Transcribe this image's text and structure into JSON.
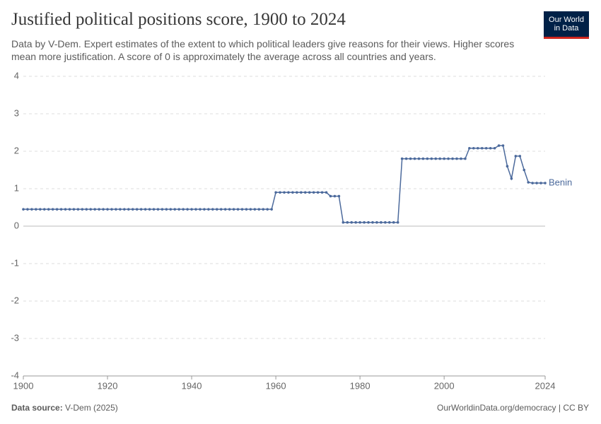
{
  "chart_data": {
    "type": "line",
    "title": "Justified political positions score, 1900 to 2024",
    "subtitle": "Data by V-Dem. Expert estimates of the extent to which political leaders give reasons for their views. Higher scores mean more justification. A score of 0 is approximately the average across all countries and years.",
    "x": [
      1900,
      1901,
      1902,
      1903,
      1904,
      1905,
      1906,
      1907,
      1908,
      1909,
      1910,
      1911,
      1912,
      1913,
      1914,
      1915,
      1916,
      1917,
      1918,
      1919,
      1920,
      1921,
      1922,
      1923,
      1924,
      1925,
      1926,
      1927,
      1928,
      1929,
      1930,
      1931,
      1932,
      1933,
      1934,
      1935,
      1936,
      1937,
      1938,
      1939,
      1940,
      1941,
      1942,
      1943,
      1944,
      1945,
      1946,
      1947,
      1948,
      1949,
      1950,
      1951,
      1952,
      1953,
      1954,
      1955,
      1956,
      1957,
      1958,
      1959,
      1960,
      1961,
      1962,
      1963,
      1964,
      1965,
      1966,
      1967,
      1968,
      1969,
      1970,
      1971,
      1972,
      1973,
      1974,
      1975,
      1976,
      1977,
      1978,
      1979,
      1980,
      1981,
      1982,
      1983,
      1984,
      1985,
      1986,
      1987,
      1988,
      1989,
      1990,
      1991,
      1992,
      1993,
      1994,
      1995,
      1996,
      1997,
      1998,
      1999,
      2000,
      2001,
      2002,
      2003,
      2004,
      2005,
      2006,
      2007,
      2008,
      2009,
      2010,
      2011,
      2012,
      2013,
      2014,
      2015,
      2016,
      2017,
      2018,
      2019,
      2020,
      2021,
      2022,
      2023,
      2024
    ],
    "series": [
      {
        "name": "Benin",
        "color": "#4c6a9c",
        "values": [
          0.45,
          0.45,
          0.45,
          0.45,
          0.45,
          0.45,
          0.45,
          0.45,
          0.45,
          0.45,
          0.45,
          0.45,
          0.45,
          0.45,
          0.45,
          0.45,
          0.45,
          0.45,
          0.45,
          0.45,
          0.45,
          0.45,
          0.45,
          0.45,
          0.45,
          0.45,
          0.45,
          0.45,
          0.45,
          0.45,
          0.45,
          0.45,
          0.45,
          0.45,
          0.45,
          0.45,
          0.45,
          0.45,
          0.45,
          0.45,
          0.45,
          0.45,
          0.45,
          0.45,
          0.45,
          0.45,
          0.45,
          0.45,
          0.45,
          0.45,
          0.45,
          0.45,
          0.45,
          0.45,
          0.45,
          0.45,
          0.45,
          0.45,
          0.45,
          0.45,
          0.9,
          0.9,
          0.9,
          0.9,
          0.9,
          0.9,
          0.9,
          0.9,
          0.9,
          0.9,
          0.9,
          0.9,
          0.9,
          0.8,
          0.8,
          0.8,
          0.1,
          0.1,
          0.1,
          0.1,
          0.1,
          0.1,
          0.1,
          0.1,
          0.1,
          0.1,
          0.1,
          0.1,
          0.1,
          0.1,
          1.8,
          1.8,
          1.8,
          1.8,
          1.8,
          1.8,
          1.8,
          1.8,
          1.8,
          1.8,
          1.8,
          1.8,
          1.8,
          1.8,
          1.8,
          1.8,
          2.08,
          2.08,
          2.08,
          2.08,
          2.08,
          2.08,
          2.08,
          2.15,
          2.15,
          1.6,
          1.27,
          1.87,
          1.87,
          1.5,
          1.17,
          1.15,
          1.15,
          1.15,
          1.15
        ]
      }
    ],
    "xlim": [
      1900,
      2024
    ],
    "xticks": [
      1900,
      1920,
      1940,
      1960,
      1980,
      2000,
      2024
    ],
    "ylim": [
      -4,
      4
    ],
    "yticks": [
      -4,
      -3,
      -2,
      -1,
      0,
      1,
      2,
      3,
      4
    ],
    "grid": true,
    "source_label": "Data source:",
    "source": "V-Dem (2025)",
    "credit": "OurWorldinData.org/democracy | CC BY",
    "logo": [
      "Our World",
      "in Data"
    ]
  }
}
